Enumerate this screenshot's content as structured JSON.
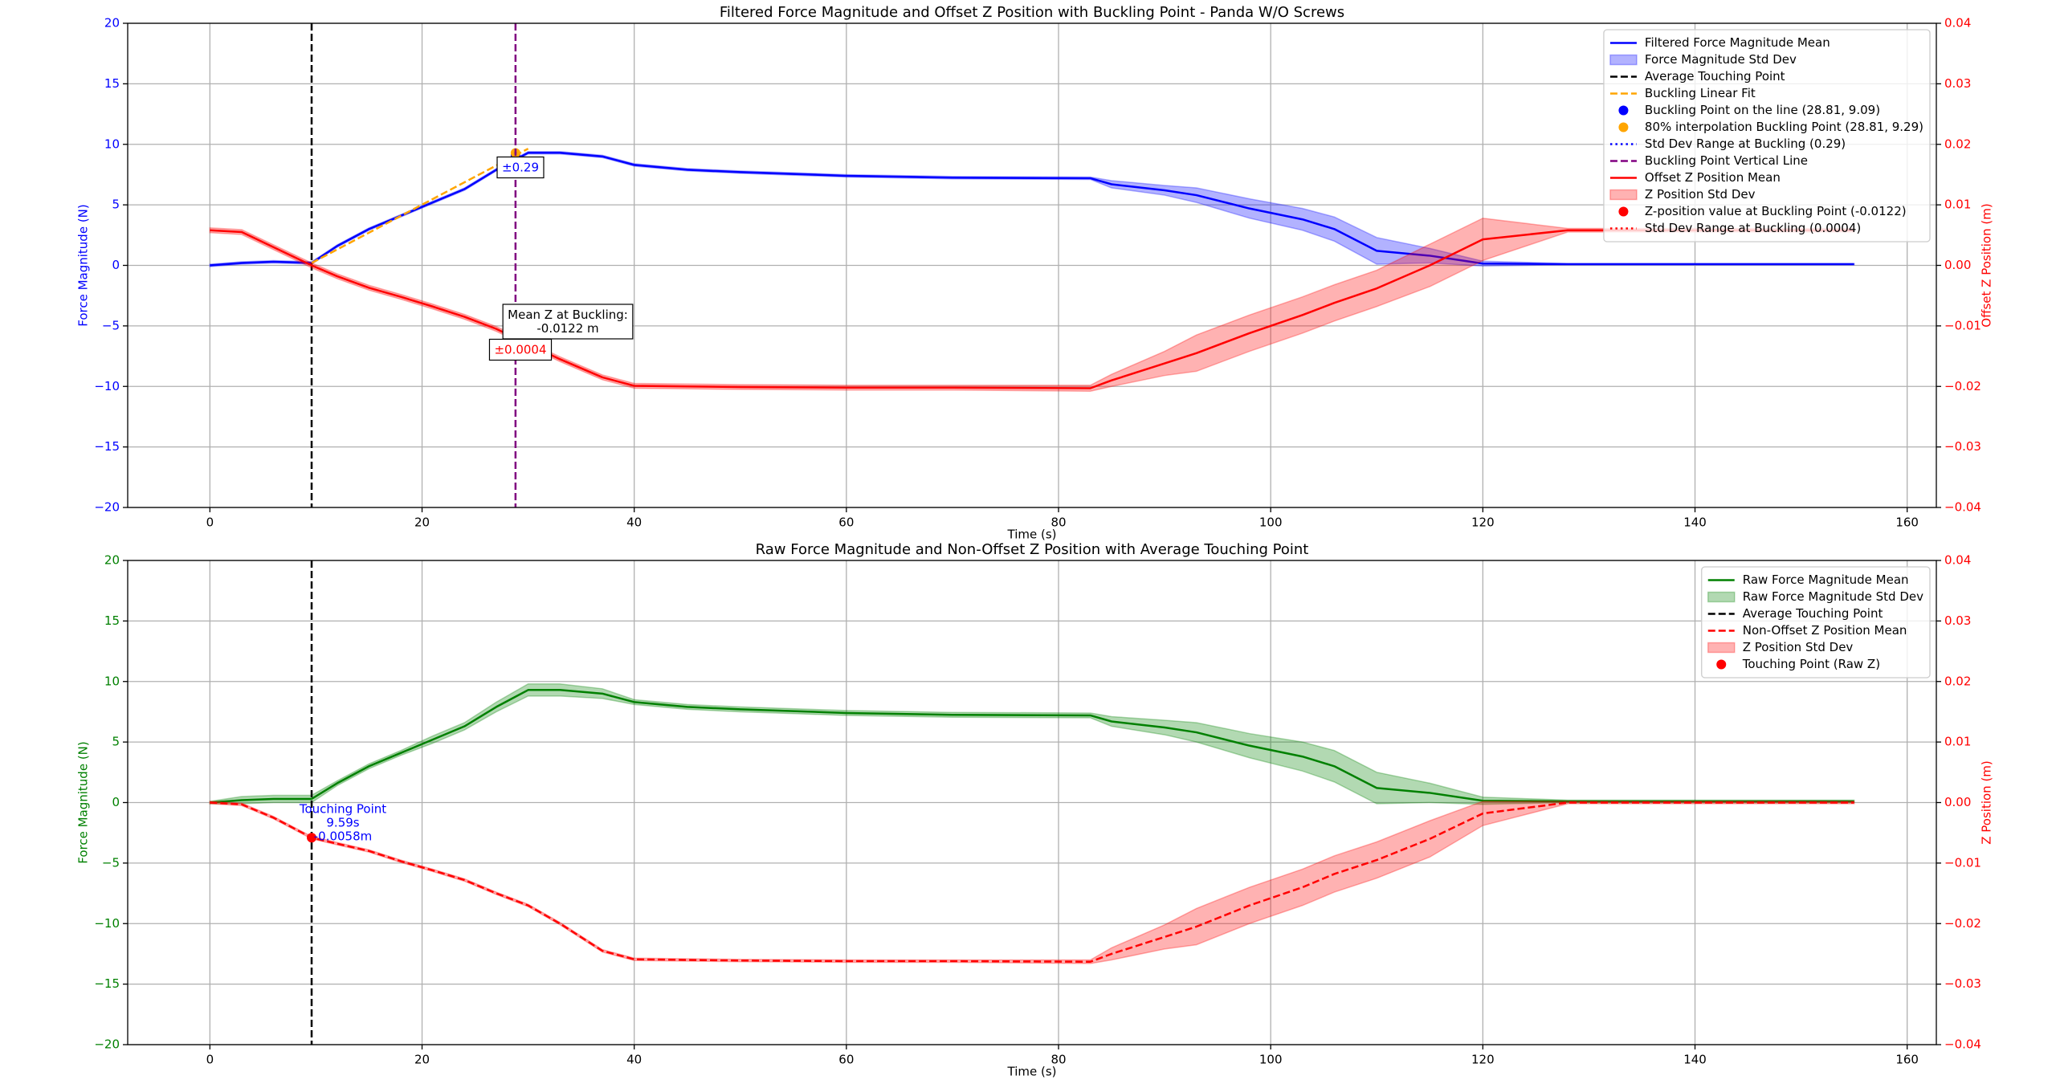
{
  "chart_data": [
    {
      "type": "line",
      "title": "Filtered Force Magnitude and Offset Z Position with Buckling Point - Panda W/O Screws",
      "xlabel": "Time (s)",
      "ylabel": "Force Magnitude (N)",
      "y2label": "Offset Z Position (m)",
      "ycolor": "#0000ff",
      "y2color": "#ff0000",
      "xlim": [
        -7.75,
        162.75
      ],
      "xticks": [
        0,
        20,
        40,
        60,
        80,
        100,
        120,
        140,
        160
      ],
      "ylim": [
        -20,
        20
      ],
      "yticks": [
        {
          "value": -20,
          "label": "−20"
        },
        {
          "value": -15,
          "label": "−15"
        },
        {
          "value": -10,
          "label": "−10"
        },
        {
          "value": -5,
          "label": "−5"
        },
        0,
        5,
        10,
        15,
        20
      ],
      "y2lim": [
        -0.04,
        0.04
      ],
      "y2ticks": [
        {
          "value": -0.04,
          "label": "−0.04"
        },
        {
          "value": -0.03,
          "label": "−0.03"
        },
        {
          "value": -0.02,
          "label": "−0.02"
        },
        {
          "value": -0.01,
          "label": "−0.01"
        },
        {
          "value": 0,
          "label": "0.00"
        },
        0.01,
        0.02,
        0.03,
        0.04
      ],
      "grid": true,
      "legend": "upper right",
      "x": [
        0,
        3,
        6,
        9.59,
        12,
        15,
        18,
        21,
        24,
        27,
        30,
        33,
        37,
        40,
        45,
        50,
        60,
        70,
        83,
        85,
        90,
        93,
        98,
        103,
        106,
        110,
        115,
        120,
        128,
        140,
        155
      ],
      "series": [
        {
          "name": "Filtered Force Magnitude Mean",
          "style": "line",
          "color": "#0000ff",
          "values": [
            0,
            0.2,
            0.3,
            0.2,
            1.6,
            3.0,
            4.1,
            5.2,
            6.3,
            7.9,
            9.3,
            9.3,
            9.0,
            8.3,
            7.9,
            7.7,
            7.4,
            7.25,
            7.2,
            6.7,
            6.2,
            5.8,
            4.7,
            3.8,
            3.0,
            1.2,
            0.8,
            0.15,
            0.1,
            0.1,
            0.1
          ]
        },
        {
          "name": "Force Magnitude Std Dev",
          "style": "band",
          "color": "#0000ff",
          "lower": [
            -0.1,
            0.1,
            0.2,
            0.1,
            1.5,
            2.9,
            4.0,
            5.1,
            6.2,
            7.8,
            9.2,
            9.2,
            8.9,
            8.2,
            7.8,
            7.6,
            7.3,
            7.15,
            7.1,
            6.4,
            5.8,
            5.2,
            3.9,
            2.9,
            2.0,
            0.1,
            0.2,
            -0.05,
            0.05,
            0.05,
            0.05
          ],
          "upper": [
            0.1,
            0.3,
            0.4,
            0.3,
            1.7,
            3.1,
            4.2,
            5.3,
            6.4,
            8.0,
            9.4,
            9.4,
            9.1,
            8.4,
            8.0,
            7.8,
            7.5,
            7.35,
            7.3,
            7.0,
            6.6,
            6.4,
            5.5,
            4.7,
            4.0,
            2.3,
            1.4,
            0.35,
            0.15,
            0.15,
            0.15
          ]
        },
        {
          "name": "Average Touching Point",
          "style": "vline",
          "dash": "dashed",
          "color": "#000000",
          "x": [
            9.59
          ]
        },
        {
          "name": "Buckling Linear Fit",
          "style": "line",
          "dash": "dashed",
          "color": "#ffa500",
          "x": [
            9.59,
            30
          ],
          "values": [
            0.2,
            9.64
          ]
        },
        {
          "name": "Buckling Point on the line (28.81, 9.09)",
          "style": "point",
          "color": "#0000ff",
          "x": [
            28.81
          ],
          "values": [
            9.09
          ]
        },
        {
          "name": "80% interpolation Buckling Point (28.81, 9.29)",
          "style": "point",
          "color": "#ffa500",
          "x": [
            28.81
          ],
          "values": [
            9.29
          ]
        },
        {
          "name": "Std Dev Range at Buckling (0.29)",
          "style": "errorbar",
          "dash": "dotted",
          "color": "#0000ff",
          "x": [
            28.81
          ],
          "values": [
            9.09
          ],
          "errors": [
            0.29
          ]
        },
        {
          "name": "Buckling Point Vertical Line",
          "style": "vline",
          "dash": "dashed",
          "color": "#800080",
          "x": [
            28.81
          ]
        },
        {
          "name": "Offset Z Position Mean",
          "style": "line",
          "color": "#ff0000",
          "axis": "y2",
          "values": [
            0.0058,
            0.0055,
            0.003,
            0,
            -0.0018,
            -0.0037,
            -0.0052,
            -0.0068,
            -0.0085,
            -0.0105,
            -0.013,
            -0.0155,
            -0.0185,
            -0.0199,
            -0.02,
            -0.0201,
            -0.0202,
            -0.0202,
            -0.0203,
            -0.019,
            -0.0162,
            -0.0145,
            -0.0112,
            -0.0082,
            -0.0062,
            -0.0038,
            0,
            0.0043,
            0.0058,
            0.0058,
            0.0058
          ]
        },
        {
          "name": "Z Position Std Dev",
          "style": "band",
          "color": "#ff0000",
          "axis": "y2",
          "lower": [
            0.0054,
            0.0051,
            0.0026,
            -0.0004,
            -0.0022,
            -0.0041,
            -0.0056,
            -0.0072,
            -0.0089,
            -0.0109,
            -0.0134,
            -0.0159,
            -0.0189,
            -0.0203,
            -0.0204,
            -0.0205,
            -0.0206,
            -0.0206,
            -0.0208,
            -0.02,
            -0.0182,
            -0.0175,
            -0.0142,
            -0.0112,
            -0.0092,
            -0.0068,
            -0.0035,
            0.0008,
            0.0055,
            0.0055,
            0.0055
          ],
          "upper": [
            0.0062,
            0.0059,
            0.0034,
            0.0004,
            -0.0014,
            -0.0033,
            -0.0048,
            -0.0064,
            -0.0081,
            -0.0101,
            -0.0126,
            -0.0151,
            -0.0181,
            -0.0195,
            -0.0196,
            -0.0197,
            -0.0198,
            -0.0198,
            -0.0198,
            -0.018,
            -0.0142,
            -0.0115,
            -0.0082,
            -0.0052,
            -0.0032,
            -0.0008,
            0.0035,
            0.0078,
            0.0061,
            0.0061,
            0.0061
          ]
        },
        {
          "name": "Z-position value at Buckling Point (-0.0122)",
          "style": "point",
          "color": "#ff0000",
          "axis": "y2",
          "x": [
            28.81
          ],
          "values": [
            -0.0122
          ]
        },
        {
          "name": "Std Dev Range at Buckling (0.0004)",
          "style": "errorbar",
          "dash": "dotted",
          "color": "#ff0000",
          "axis": "y2",
          "x": [
            28.81
          ],
          "values": [
            -0.0122
          ],
          "errors": [
            0.0004
          ]
        }
      ],
      "annotations": [
        {
          "lines": [
            "±0.29"
          ],
          "color": "#0000ff"
        },
        {
          "lines": [
            "Mean Z at Buckling:",
            "-0.0122 m"
          ],
          "color": "#000000"
        },
        {
          "lines": [
            "±0.0004"
          ],
          "color": "#ff0000"
        }
      ]
    },
    {
      "type": "line",
      "title": "Raw Force Magnitude and Non-Offset Z Position with Average Touching Point",
      "xlabel": "Time (s)",
      "ylabel": "Force Magnitude (N)",
      "y2label": "Z Position (m)",
      "ycolor": "#008000",
      "y2color": "#ff0000",
      "xlim": [
        -7.75,
        162.75
      ],
      "xticks": [
        0,
        20,
        40,
        60,
        80,
        100,
        120,
        140,
        160
      ],
      "ylim": [
        -20,
        20
      ],
      "yticks": [
        {
          "value": -20,
          "label": "−20"
        },
        {
          "value": -15,
          "label": "−15"
        },
        {
          "value": -10,
          "label": "−10"
        },
        {
          "value": -5,
          "label": "−5"
        },
        0,
        5,
        10,
        15,
        20
      ],
      "y2lim": [
        -0.04,
        0.04
      ],
      "y2ticks": [
        {
          "value": -0.04,
          "label": "−0.04"
        },
        {
          "value": -0.03,
          "label": "−0.03"
        },
        {
          "value": -0.02,
          "label": "−0.02"
        },
        {
          "value": -0.01,
          "label": "−0.01"
        },
        {
          "value": 0,
          "label": "0.00"
        },
        0.01,
        0.02,
        0.03,
        0.04
      ],
      "grid": true,
      "legend": "upper right",
      "x": [
        0,
        3,
        6,
        9.59,
        12,
        15,
        18,
        21,
        24,
        27,
        30,
        33,
        37,
        40,
        45,
        50,
        60,
        70,
        83,
        85,
        90,
        93,
        98,
        103,
        106,
        110,
        115,
        120,
        128,
        140,
        155
      ],
      "series": [
        {
          "name": "Raw Force Magnitude Mean",
          "style": "line",
          "color": "#008000",
          "values": [
            0,
            0.2,
            0.3,
            0.3,
            1.6,
            3.0,
            4.1,
            5.2,
            6.3,
            7.9,
            9.3,
            9.3,
            9.0,
            8.3,
            7.9,
            7.7,
            7.4,
            7.25,
            7.2,
            6.7,
            6.2,
            5.8,
            4.7,
            3.8,
            3.0,
            1.2,
            0.8,
            0.15,
            0.1,
            0.1,
            0.1
          ]
        },
        {
          "name": "Raw Force Magnitude Std Dev",
          "style": "band",
          "color": "#008000",
          "lower": [
            -0.1,
            -0.1,
            0.0,
            0.0,
            1.4,
            2.8,
            3.9,
            4.9,
            6.0,
            7.5,
            8.8,
            8.8,
            8.6,
            8.1,
            7.7,
            7.5,
            7.2,
            7.05,
            7.0,
            6.3,
            5.6,
            5.0,
            3.7,
            2.6,
            1.7,
            -0.1,
            0.0,
            -0.15,
            0.0,
            0.0,
            0.0
          ],
          "upper": [
            0.1,
            0.5,
            0.6,
            0.6,
            1.8,
            3.2,
            4.3,
            5.5,
            6.6,
            8.3,
            9.8,
            9.8,
            9.4,
            8.5,
            8.1,
            7.9,
            7.6,
            7.45,
            7.4,
            7.1,
            6.8,
            6.6,
            5.7,
            5.0,
            4.3,
            2.5,
            1.6,
            0.45,
            0.2,
            0.2,
            0.2
          ]
        },
        {
          "name": "Average Touching Point",
          "style": "vline",
          "dash": "dashed",
          "color": "#000000",
          "x": [
            9.59
          ]
        },
        {
          "name": "Non-Offset Z Position Mean",
          "style": "line",
          "dash": "dashed",
          "color": "#ff0000",
          "axis": "y2",
          "values": [
            0,
            -0.0003,
            -0.0025,
            -0.0058,
            -0.0068,
            -0.008,
            -0.0097,
            -0.0112,
            -0.0128,
            -0.015,
            -0.017,
            -0.02,
            -0.0245,
            -0.0259,
            -0.026,
            -0.0261,
            -0.0262,
            -0.0262,
            -0.0263,
            -0.025,
            -0.0222,
            -0.0205,
            -0.017,
            -0.014,
            -0.0118,
            -0.0095,
            -0.006,
            -0.0018,
            0,
            0,
            0
          ]
        },
        {
          "name": "Z Position Std Dev",
          "style": "band",
          "color": "#ff0000",
          "axis": "y2",
          "lower": [
            -0.0002,
            -0.0005,
            -0.0027,
            -0.006,
            -0.007,
            -0.0082,
            -0.0099,
            -0.0114,
            -0.013,
            -0.0152,
            -0.0172,
            -0.0202,
            -0.0247,
            -0.0261,
            -0.0262,
            -0.0263,
            -0.0264,
            -0.0264,
            -0.0266,
            -0.026,
            -0.0242,
            -0.0235,
            -0.02,
            -0.017,
            -0.0148,
            -0.0125,
            -0.009,
            -0.0038,
            -0.0002,
            -0.0002,
            -0.0002
          ],
          "upper": [
            0.0002,
            -0.0001,
            -0.0023,
            -0.0056,
            -0.0066,
            -0.0078,
            -0.0095,
            -0.011,
            -0.0126,
            -0.0148,
            -0.0168,
            -0.0198,
            -0.0243,
            -0.0257,
            -0.0258,
            -0.0259,
            -0.026,
            -0.026,
            -0.026,
            -0.024,
            -0.0202,
            -0.0175,
            -0.014,
            -0.011,
            -0.0088,
            -0.0065,
            -0.003,
            0.0002,
            0.0002,
            0.0002,
            0.0002
          ]
        },
        {
          "name": "Touching Point (Raw Z)",
          "style": "point",
          "color": "#ff0000",
          "axis": "y2",
          "x": [
            9.59
          ],
          "values": [
            -0.0058
          ]
        }
      ],
      "annotations": [
        {
          "lines": [
            "Touching Point",
            "9.59s",
            "-0.0058m"
          ],
          "color": "#0000ff"
        }
      ]
    }
  ]
}
